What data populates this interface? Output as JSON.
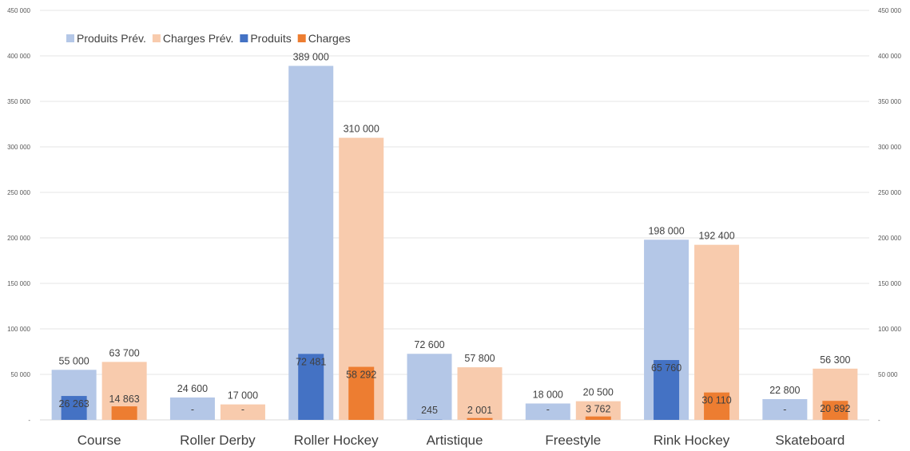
{
  "chart_data": {
    "type": "bar",
    "title": "",
    "xlabel": "",
    "ylabel": "",
    "ylim": [
      0,
      450000
    ],
    "yticks": [
      0,
      50000,
      100000,
      150000,
      200000,
      250000,
      300000,
      350000,
      400000,
      450000
    ],
    "ytick_labels": [
      "-",
      "50 000",
      "100 000",
      "150 000",
      "200 000",
      "250 000",
      "300 000",
      "350 000",
      "400 000",
      "450 000"
    ],
    "grid": true,
    "legend_position": "top-left",
    "categories": [
      "Course",
      "Roller Derby",
      "Roller Hockey",
      "Artistique",
      "Freestyle",
      "Rink Hockey",
      "Skateboard"
    ],
    "series": [
      {
        "name": "Produits Prév.",
        "color": "#b4c7e7",
        "values": [
          55000,
          24600,
          389000,
          72600,
          18000,
          198000,
          22800
        ],
        "labels": [
          "55 000",
          "24 600",
          "389 000",
          "72 600",
          "18 000",
          "198 000",
          "22 800"
        ]
      },
      {
        "name": "Charges Prév.",
        "color": "#f8cbad",
        "values": [
          63700,
          17000,
          310000,
          57800,
          20500,
          192400,
          56300
        ],
        "labels": [
          "63 700",
          "17 000",
          "310 000",
          "57 800",
          "20 500",
          "192 400",
          "56 300"
        ]
      },
      {
        "name": "Produits",
        "color": "#4472c4",
        "values": [
          26263,
          0,
          72481,
          245,
          0,
          65760,
          0
        ],
        "labels": [
          "26 263",
          "-",
          "72 481",
          "245",
          "-",
          "65 760",
          "-"
        ]
      },
      {
        "name": "Charges",
        "color": "#ed7d31",
        "values": [
          14863,
          0,
          58292,
          2001,
          3762,
          30110,
          20892
        ],
        "labels": [
          "14 863",
          "-",
          "58 292",
          "2 001",
          "3 762",
          "30 110",
          "20 892"
        ]
      }
    ]
  }
}
